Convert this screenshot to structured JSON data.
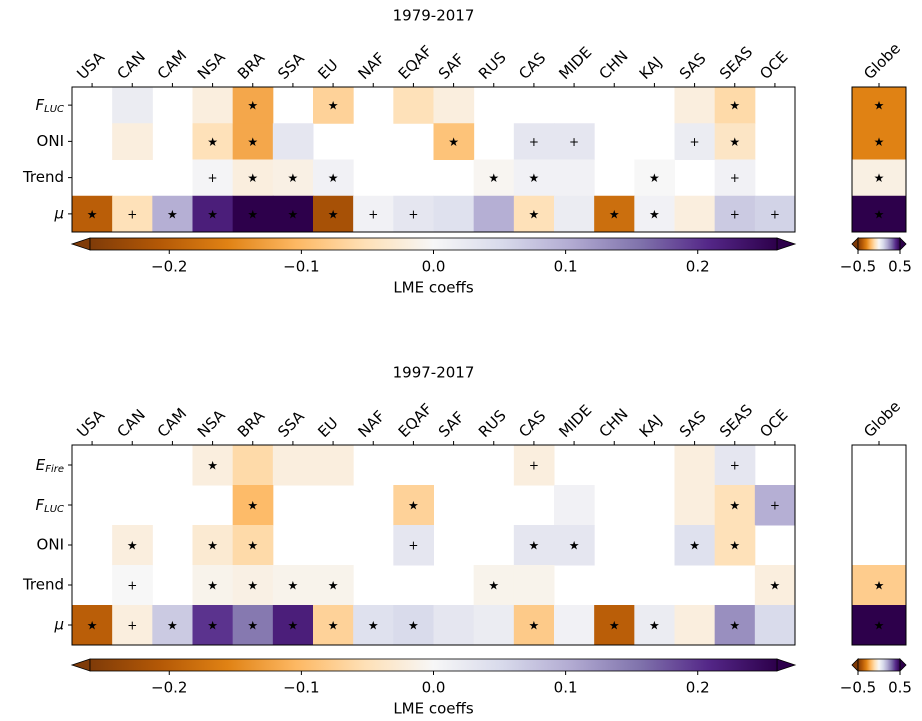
{
  "chart_data": [
    {
      "type": "heatmap",
      "title": "1979-2017",
      "columns": [
        "USA",
        "CAN",
        "CAM",
        "NSA",
        "BRA",
        "SSA",
        "EU",
        "NAF",
        "EQAF",
        "SAF",
        "RUS",
        "CAS",
        "MIDE",
        "CHN",
        "KAJ",
        "SAS",
        "SEAS",
        "OCE"
      ],
      "rows": [
        "F_LUC",
        "ONI",
        "Trend",
        "μ"
      ],
      "values": [
        [
          null,
          0.02,
          null,
          -0.02,
          -0.12,
          null,
          -0.07,
          null,
          -0.05,
          -0.02,
          null,
          null,
          null,
          null,
          null,
          -0.02,
          -0.06,
          null
        ],
        [
          null,
          -0.02,
          null,
          -0.05,
          -0.12,
          0.03,
          null,
          null,
          null,
          -0.09,
          null,
          0.03,
          0.03,
          null,
          null,
          0.02,
          -0.04,
          null
        ],
        [
          null,
          null,
          null,
          0.005,
          -0.02,
          -0.015,
          0.01,
          null,
          null,
          null,
          -0.005,
          0.01,
          0.01,
          null,
          0.0,
          null,
          0.01,
          null
        ],
        [
          -0.2,
          -0.05,
          0.1,
          0.22,
          0.27,
          0.27,
          -0.22,
          0.01,
          0.03,
          0.04,
          0.1,
          -0.05,
          0.02,
          -0.18,
          0.01,
          -0.02,
          0.07,
          0.06
        ]
      ],
      "markers": [
        [
          null,
          null,
          null,
          null,
          "★",
          null,
          "★",
          null,
          null,
          null,
          null,
          null,
          null,
          null,
          null,
          null,
          "★",
          null
        ],
        [
          null,
          null,
          null,
          "★",
          "★",
          null,
          null,
          null,
          null,
          "★",
          null,
          "+",
          "+",
          null,
          null,
          "+",
          "★",
          null
        ],
        [
          null,
          null,
          null,
          "+",
          "★",
          "★",
          "★",
          null,
          null,
          null,
          "★",
          "★",
          null,
          null,
          "★",
          null,
          "+",
          null
        ],
        [
          "★",
          "+",
          "★",
          "★",
          "★",
          "★",
          "★",
          "+",
          "+",
          null,
          null,
          "★",
          null,
          "★",
          "★",
          null,
          "+",
          "+"
        ]
      ],
      "clim": [
        -0.26,
        0.26
      ],
      "colorbar_ticks": [
        {
          "value": -0.2,
          "label": "−0.2"
        },
        {
          "value": -0.1,
          "label": "−0.1"
        },
        {
          "value": 0,
          "label": "0.0"
        },
        0.1,
        0.2
      ],
      "colorbar_label": "LME coeffs",
      "cmap": [
        "#7f3b08",
        "#b35806",
        "#e08214",
        "#fdb863",
        "#fee0b6",
        "#f7f7f7",
        "#d8daeb",
        "#b2abd2",
        "#8073ac",
        "#542788",
        "#2d004b"
      ],
      "globe": {
        "columns": [
          "Globe"
        ],
        "values": [
          [
            -0.3
          ],
          [
            -0.3
          ],
          [
            -0.03
          ],
          [
            0.5
          ]
        ],
        "markers": [
          [
            "★"
          ],
          [
            "★"
          ],
          [
            "★"
          ],
          [
            "★"
          ]
        ],
        "clim": [
          -0.5,
          0.5
        ],
        "colorbar_ticks": [
          {
            "value": -0.5,
            "label": "−0.5"
          },
          0.5
        ]
      }
    },
    {
      "type": "heatmap",
      "title": "1997-2017",
      "columns": [
        "USA",
        "CAN",
        "CAM",
        "NSA",
        "BRA",
        "SSA",
        "EU",
        "NAF",
        "EQAF",
        "SAF",
        "RUS",
        "CAS",
        "MIDE",
        "CHN",
        "KAJ",
        "SAS",
        "SEAS",
        "OCE"
      ],
      "rows": [
        "E_Fire",
        "F_LUC",
        "ONI",
        "Trend",
        "μ"
      ],
      "values": [
        [
          null,
          null,
          null,
          -0.02,
          -0.06,
          -0.02,
          -0.02,
          null,
          null,
          null,
          null,
          -0.02,
          null,
          null,
          null,
          -0.02,
          0.03,
          null
        ],
        [
          null,
          null,
          null,
          null,
          -0.1,
          null,
          null,
          null,
          -0.07,
          null,
          null,
          null,
          0.01,
          null,
          null,
          -0.02,
          -0.05,
          0.1
        ],
        [
          null,
          -0.02,
          null,
          -0.03,
          -0.06,
          null,
          null,
          null,
          0.03,
          null,
          null,
          0.03,
          0.03,
          null,
          null,
          0.04,
          -0.05,
          null
        ],
        [
          null,
          0.0,
          null,
          -0.01,
          -0.015,
          -0.01,
          -0.01,
          null,
          null,
          null,
          -0.01,
          -0.01,
          null,
          null,
          null,
          null,
          null,
          -0.02
        ],
        [
          -0.2,
          -0.02,
          0.07,
          0.2,
          0.15,
          0.22,
          -0.07,
          0.04,
          0.05,
          0.03,
          0.02,
          -0.08,
          0.01,
          -0.2,
          0.02,
          -0.02,
          0.13,
          0.05
        ]
      ],
      "markers": [
        [
          null,
          null,
          null,
          "★",
          null,
          null,
          null,
          null,
          null,
          null,
          null,
          "+",
          null,
          null,
          null,
          null,
          "+",
          null
        ],
        [
          null,
          null,
          null,
          null,
          "★",
          null,
          null,
          null,
          "★",
          null,
          null,
          null,
          null,
          null,
          null,
          null,
          "★",
          "+"
        ],
        [
          null,
          "★",
          null,
          "★",
          "★",
          null,
          null,
          null,
          "+",
          null,
          null,
          "★",
          "★",
          null,
          null,
          "★",
          "★",
          null
        ],
        [
          null,
          "+",
          null,
          "★",
          "★",
          "★",
          "★",
          null,
          null,
          null,
          "★",
          null,
          null,
          null,
          null,
          null,
          null,
          "★"
        ],
        [
          "★",
          "+",
          "★",
          "★",
          "★",
          "★",
          "★",
          "★",
          "★",
          null,
          null,
          "★",
          null,
          "★",
          "★",
          null,
          "★",
          null
        ]
      ],
      "clim": [
        -0.26,
        0.26
      ],
      "colorbar_ticks": [
        {
          "value": -0.2,
          "label": "−0.2"
        },
        {
          "value": -0.1,
          "label": "−0.1"
        },
        {
          "value": 0,
          "label": "0.0"
        },
        0.1,
        0.2
      ],
      "colorbar_label": "LME coeffs",
      "cmap": [
        "#7f3b08",
        "#b35806",
        "#e08214",
        "#fdb863",
        "#fee0b6",
        "#f7f7f7",
        "#d8daeb",
        "#b2abd2",
        "#8073ac",
        "#542788",
        "#2d004b"
      ],
      "globe": {
        "columns": [
          "Globe"
        ],
        "values": [
          [
            null
          ],
          [
            null
          ],
          [
            null
          ],
          [
            -0.15
          ],
          [
            0.5
          ]
        ],
        "markers": [
          [
            null
          ],
          [
            null
          ],
          [
            null
          ],
          [
            "★"
          ],
          [
            "★"
          ]
        ],
        "clim": [
          -0.5,
          0.5
        ],
        "colorbar_ticks": [
          {
            "value": -0.5,
            "label": "−0.5"
          },
          0.5
        ]
      }
    }
  ]
}
